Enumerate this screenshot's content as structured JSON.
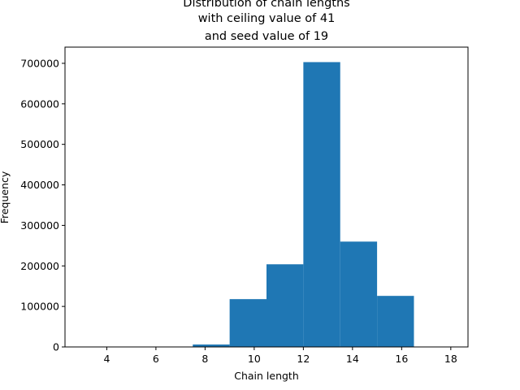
{
  "chart_data": {
    "type": "bar",
    "title_lines": [
      "Distribution of chain lengths",
      "with ceiling value of 41",
      "and seed value of 19"
    ],
    "xlabel": "Chain length",
    "ylabel": "Frequency",
    "xlim": [
      2.3,
      18.7
    ],
    "ylim": [
      0,
      740000
    ],
    "x_ticks": [
      4,
      6,
      8,
      10,
      12,
      14,
      16,
      18
    ],
    "y_ticks": [
      0,
      100000,
      200000,
      300000,
      400000,
      500000,
      600000,
      700000
    ],
    "bar_color": "#1f77b4",
    "bins": [
      {
        "x0": 3.0,
        "x1": 4.5,
        "value": 0
      },
      {
        "x0": 4.5,
        "x1": 6.0,
        "value": 0
      },
      {
        "x0": 6.0,
        "x1": 7.5,
        "value": 1000
      },
      {
        "x0": 7.5,
        "x1": 9.0,
        "value": 6000
      },
      {
        "x0": 9.0,
        "x1": 10.5,
        "value": 118000
      },
      {
        "x0": 10.5,
        "x1": 12.0,
        "value": 204000
      },
      {
        "x0": 12.0,
        "x1": 13.5,
        "value": 703000
      },
      {
        "x0": 13.5,
        "x1": 15.0,
        "value": 260000
      },
      {
        "x0": 15.0,
        "x1": 16.5,
        "value": 126000
      },
      {
        "x0": 16.5,
        "x1": 18.0,
        "value": 0
      }
    ]
  }
}
